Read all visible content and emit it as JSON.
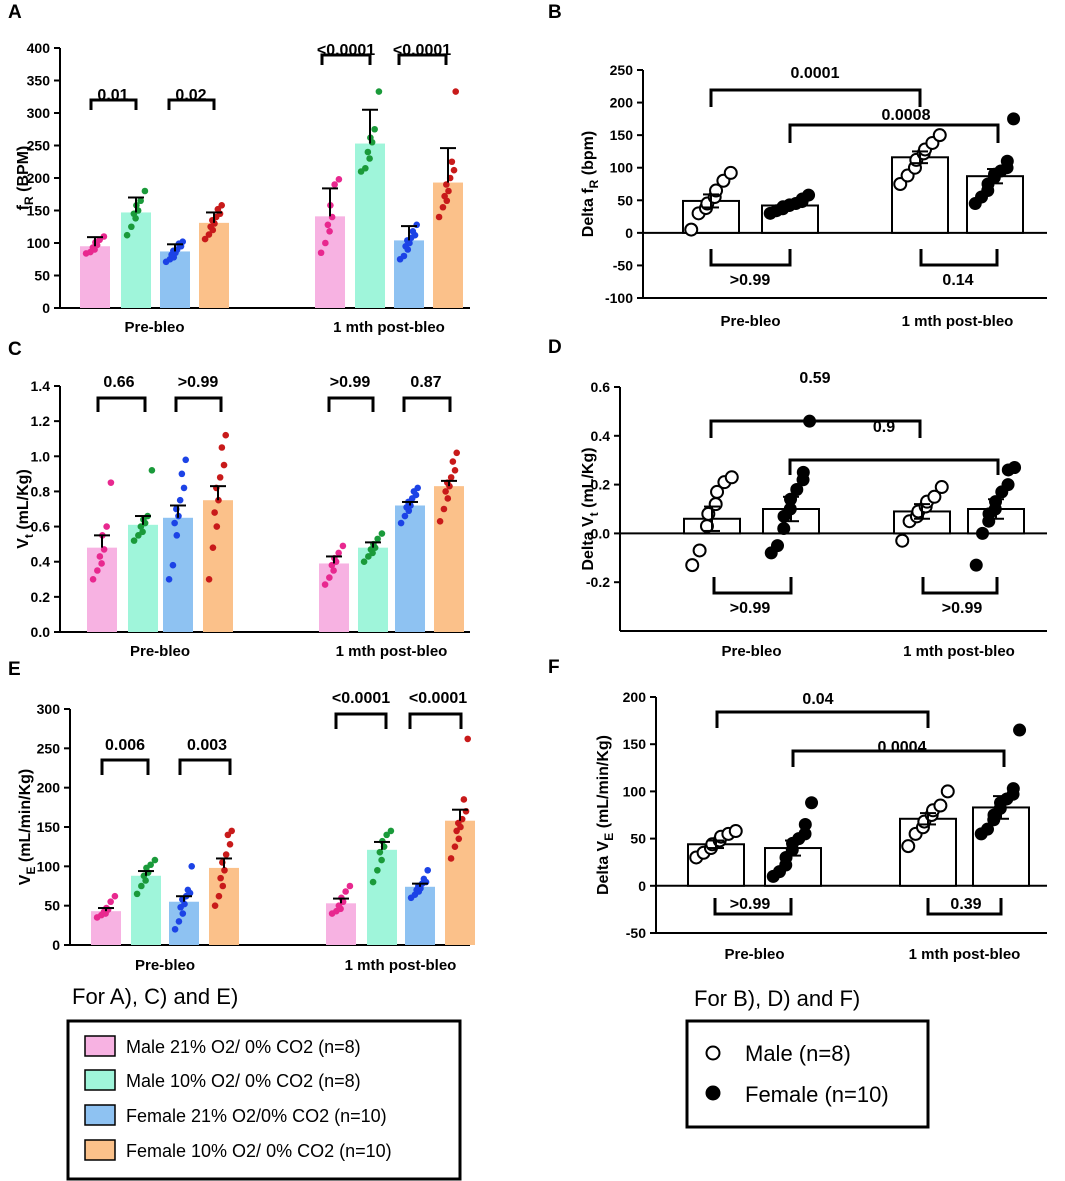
{
  "legend_left": {
    "title": "For A), C) and E)",
    "entries": [
      {
        "label": "Male 21% O2/ 0% CO2 (n=8)",
        "color": "#f7b2e2"
      },
      {
        "label": "Male 10% O2/ 0% CO2 (n=8)",
        "color": "#9ff5da"
      },
      {
        "label": "Female 21% O2/0% CO2 (n=10)",
        "color": "#8ec2f2"
      },
      {
        "label": "Female 10% O2/ 0% CO2 (n=10)",
        "color": "#fbc18a"
      }
    ]
  },
  "legend_right": {
    "title": "For B), D) and F)",
    "entries": [
      {
        "label": "Male (n=8)",
        "marker": "open-circle"
      },
      {
        "label": "Female (n=10)",
        "marker": "filled-circle"
      }
    ]
  },
  "chart_data": [
    {
      "panel": "A",
      "type": "bar",
      "ylabel": "fR (BPM)",
      "ylabel_main": "f",
      "ylabel_sub": "R",
      "ylabel_rest": " (BPM)",
      "categories": [
        "Pre-bleo",
        "1 mth post-bleo"
      ],
      "ylim": [
        0,
        400
      ],
      "yticks": [
        0,
        50,
        100,
        150,
        200,
        250,
        300,
        350,
        400
      ],
      "series": [
        {
          "name": "Male 21% O2/ 0% CO2 (n=8)",
          "values": [
            95,
            141
          ],
          "errors": [
            14,
            43
          ],
          "dot_color": "#e8288f",
          "points": [
            [
              84,
              86,
              90,
              93,
              97,
              101,
              105,
              110
            ],
            [
              85,
              100,
              118,
              128,
              140,
              158,
              190,
              198
            ]
          ]
        },
        {
          "name": "Male 10% O2/ 0% CO2 (n=8)",
          "values": [
            147,
            253
          ],
          "errors": [
            23,
            52
          ],
          "dot_color": "#1a9a3a",
          "points": [
            [
              112,
              125,
              138,
              145,
              150,
              158,
              165,
              180
            ],
            [
              210,
              215,
              230,
              240,
              255,
              262,
              275,
              333
            ]
          ]
        },
        {
          "name": "Female 21% O2/0% CO2 (n=10)",
          "values": [
            87,
            104
          ],
          "errors": [
            11,
            22
          ],
          "dot_color": "#1c43e6",
          "points": [
            [
              71,
              75,
              78,
              82,
              85,
              88,
              90,
              95,
              99,
              102
            ],
            [
              75,
              80,
              90,
              95,
              100,
              104,
              108,
              112,
              118,
              128
            ]
          ]
        },
        {
          "name": "Female 10% O2/ 0% CO2 (n=10)",
          "values": [
            131,
            193
          ],
          "errors": [
            16,
            53
          ],
          "dot_color": "#c81a1a",
          "points": [
            [
              106,
              113,
              120,
              125,
              130,
              135,
              140,
              145,
              152,
              158
            ],
            [
              140,
              155,
              165,
              172,
              180,
              190,
              200,
              212,
              225,
              333
            ]
          ]
        }
      ],
      "annotations": [
        "0.01",
        "0.02",
        "<0.0001",
        "<0.0001"
      ]
    },
    {
      "panel": "B",
      "type": "bar",
      "ylabel": "Delta fR (bpm)",
      "ylabel_main": "Delta f",
      "ylabel_sub": "R",
      "ylabel_rest": "  (bpm)",
      "categories": [
        "Pre-bleo",
        "1 mth post-bleo"
      ],
      "ylim": [
        -100,
        250
      ],
      "yticks": [
        -100,
        -50,
        0,
        50,
        100,
        150,
        200,
        250
      ],
      "series": [
        {
          "name": "Male (n=8)",
          "values": [
            49,
            116
          ],
          "errors": [
            10,
            9
          ],
          "marker": "open-circle",
          "points": [
            [
              5,
              30,
              38,
              45,
              55,
              65,
              80,
              92
            ],
            [
              75,
              88,
              100,
              112,
              122,
              128,
              138,
              150
            ]
          ]
        },
        {
          "name": "Female (n=10)",
          "values": [
            42,
            87
          ],
          "errors": [
            4,
            11
          ],
          "marker": "filled-circle",
          "points": [
            [
              30,
              34,
              37,
              40,
              42,
              43,
              45,
              48,
              52,
              58
            ],
            [
              45,
              55,
              65,
              75,
              85,
              90,
              95,
              100,
              110,
              175
            ]
          ]
        }
      ],
      "annotations": [
        "0.0001",
        "0.0008",
        ">0.99",
        "0.14"
      ]
    },
    {
      "panel": "C",
      "type": "bar",
      "ylabel": "Vt (mL/Kg)",
      "ylabel_main": "V",
      "ylabel_sub": "t",
      "ylabel_rest": " (mL/Kg)",
      "categories": [
        "Pre-bleo",
        "1 mth post-bleo"
      ],
      "ylim": [
        0,
        1.4
      ],
      "yticks": [
        0.0,
        0.2,
        0.4,
        0.6,
        0.8,
        1.0,
        1.2,
        1.4
      ],
      "series": [
        {
          "name": "Male 21% O2/ 0% CO2 (n=8)",
          "values": [
            0.48,
            0.39
          ],
          "errors": [
            0.07,
            0.04
          ],
          "dot_color": "#e8288f",
          "points": [
            [
              0.3,
              0.35,
              0.39,
              0.43,
              0.47,
              0.55,
              0.6,
              0.85
            ],
            [
              0.27,
              0.31,
              0.35,
              0.38,
              0.4,
              0.42,
              0.45,
              0.49
            ]
          ]
        },
        {
          "name": "Male 10% O2/ 0% CO2 (n=8)",
          "values": [
            0.61,
            0.48
          ],
          "errors": [
            0.05,
            0.03
          ],
          "dot_color": "#1a9a3a",
          "points": [
            [
              0.52,
              0.55,
              0.57,
              0.6,
              0.62,
              0.64,
              0.66,
              0.92
            ],
            [
              0.4,
              0.43,
              0.45,
              0.47,
              0.48,
              0.5,
              0.53,
              0.56
            ]
          ]
        },
        {
          "name": "Female 21% O2/0% CO2 (n=10)",
          "values": [
            0.65,
            0.72
          ],
          "errors": [
            0.07,
            0.02
          ],
          "dot_color": "#1c43e6",
          "points": [
            [
              0.3,
              0.38,
              0.55,
              0.62,
              0.66,
              0.7,
              0.75,
              0.82,
              0.9,
              0.98
            ],
            [
              0.62,
              0.66,
              0.69,
              0.71,
              0.72,
              0.74,
              0.76,
              0.78,
              0.8,
              0.82
            ]
          ]
        },
        {
          "name": "Female 10% O2/ 0% CO2 (n=10)",
          "values": [
            0.75,
            0.83
          ],
          "errors": [
            0.08,
            0.03
          ],
          "dot_color": "#c81a1a",
          "points": [
            [
              0.3,
              0.48,
              0.6,
              0.68,
              0.75,
              0.82,
              0.88,
              0.95,
              1.05,
              1.12
            ],
            [
              0.63,
              0.7,
              0.76,
              0.8,
              0.83,
              0.85,
              0.88,
              0.92,
              0.97,
              1.02
            ]
          ]
        }
      ],
      "annotations": [
        "0.66",
        ">0.99",
        ">0.99",
        "0.87"
      ]
    },
    {
      "panel": "D",
      "type": "bar",
      "ylabel": "Delta Vt (mL/Kg)",
      "ylabel_main": "Delta V",
      "ylabel_sub": "t",
      "ylabel_rest": " (mL/Kg)",
      "categories": [
        "Pre-bleo",
        "1 mth post-bleo"
      ],
      "ylim": [
        -0.4,
        0.6
      ],
      "yticks": [
        -0.2,
        0.0,
        0.2,
        0.4,
        0.6
      ],
      "series": [
        {
          "name": "Male (n=8)",
          "values": [
            0.06,
            0.09
          ],
          "errors": [
            0.05,
            0.03
          ],
          "marker": "open-circle",
          "points": [
            [
              -0.13,
              -0.07,
              0.03,
              0.08,
              0.12,
              0.17,
              0.21,
              0.23
            ],
            [
              -0.03,
              0.05,
              0.07,
              0.09,
              0.11,
              0.13,
              0.15,
              0.19
            ]
          ]
        },
        {
          "name": "Female (n=10)",
          "values": [
            0.1,
            0.1
          ],
          "errors": [
            0.05,
            0.04
          ],
          "marker": "filled-circle",
          "points": [
            [
              -0.08,
              -0.05,
              0.02,
              0.07,
              0.1,
              0.14,
              0.18,
              0.22,
              0.25,
              0.46
            ],
            [
              -0.13,
              0.0,
              0.05,
              0.08,
              0.1,
              0.13,
              0.17,
              0.2,
              0.26,
              0.27
            ]
          ]
        }
      ],
      "annotations": [
        "0.59",
        "0.9",
        ">0.99",
        ">0.99"
      ]
    },
    {
      "panel": "E",
      "type": "bar",
      "ylabel": "VE (mL/min/Kg)",
      "ylabel_main": "V",
      "ylabel_sub": "E",
      "ylabel_rest": " (mL/min/Kg)",
      "categories": [
        "Pre-bleo",
        "1 mth post-bleo"
      ],
      "ylim": [
        0,
        300
      ],
      "yticks": [
        0,
        50,
        100,
        150,
        200,
        250,
        300
      ],
      "series": [
        {
          "name": "Male 21% O2/ 0% CO2 (n=8)",
          "values": [
            43,
            53
          ],
          "errors": [
            4,
            6
          ],
          "dot_color": "#e8288f",
          "points": [
            [
              35,
              38,
              40,
              42,
              45,
              47,
              55,
              62
            ],
            [
              40,
              43,
              46,
              50,
              55,
              60,
              68,
              75
            ]
          ]
        },
        {
          "name": "Male 10% O2/ 0% CO2 (n=8)",
          "values": [
            88,
            121
          ],
          "errors": [
            6,
            10
          ],
          "dot_color": "#1a9a3a",
          "points": [
            [
              65,
              75,
              82,
              88,
              92,
              98,
              102,
              108
            ],
            [
              80,
              95,
              108,
              118,
              125,
              132,
              140,
              145
            ]
          ]
        },
        {
          "name": "Female 21% O2/0% CO2 (n=10)",
          "values": [
            55,
            74
          ],
          "errors": [
            7,
            4
          ],
          "dot_color": "#1c43e6",
          "points": [
            [
              20,
              30,
              40,
              48,
              52,
              58,
              62,
              66,
              70,
              100
            ],
            [
              60,
              64,
              68,
              70,
              72,
              75,
              78,
              80,
              84,
              95
            ]
          ]
        },
        {
          "name": "Female 10% O2/ 0% CO2 (n=10)",
          "values": [
            98,
            158
          ],
          "errors": [
            12,
            14
          ],
          "dot_color": "#c81a1a",
          "points": [
            [
              50,
              62,
              75,
              85,
              95,
              105,
              115,
              128,
              140,
              145
            ],
            [
              110,
              125,
              135,
              145,
              150,
              155,
              160,
              170,
              185,
              262
            ]
          ]
        }
      ],
      "annotations": [
        "0.006",
        "0.003",
        "<0.0001",
        "<0.0001"
      ]
    },
    {
      "panel": "F",
      "type": "bar",
      "ylabel": "Delta VE (mL/min/Kg)",
      "ylabel_main": "Delta V",
      "ylabel_sub": "E",
      "ylabel_rest": " (mL/min/Kg)",
      "categories": [
        "Pre-bleo",
        "1 mth post-bleo"
      ],
      "ylim": [
        -50,
        200
      ],
      "yticks": [
        -50,
        0,
        50,
        100,
        150,
        200
      ],
      "series": [
        {
          "name": "Male (n=8)",
          "values": [
            44,
            71
          ],
          "errors": [
            4,
            6
          ],
          "marker": "open-circle",
          "points": [
            [
              30,
              35,
              40,
              44,
              48,
              52,
              55,
              58
            ],
            [
              42,
              55,
              62,
              68,
              75,
              80,
              85,
              100
            ]
          ]
        },
        {
          "name": "Female (n=10)",
          "values": [
            40,
            83
          ],
          "errors": [
            8,
            12
          ],
          "marker": "filled-circle",
          "points": [
            [
              10,
              15,
              22,
              30,
              38,
              45,
              50,
              55,
              65,
              88
            ],
            [
              55,
              60,
              70,
              75,
              82,
              88,
              92,
              97,
              103,
              165
            ]
          ]
        }
      ],
      "annotations": [
        "0.04",
        "0.0004",
        ">0.99",
        "0.39"
      ]
    }
  ]
}
